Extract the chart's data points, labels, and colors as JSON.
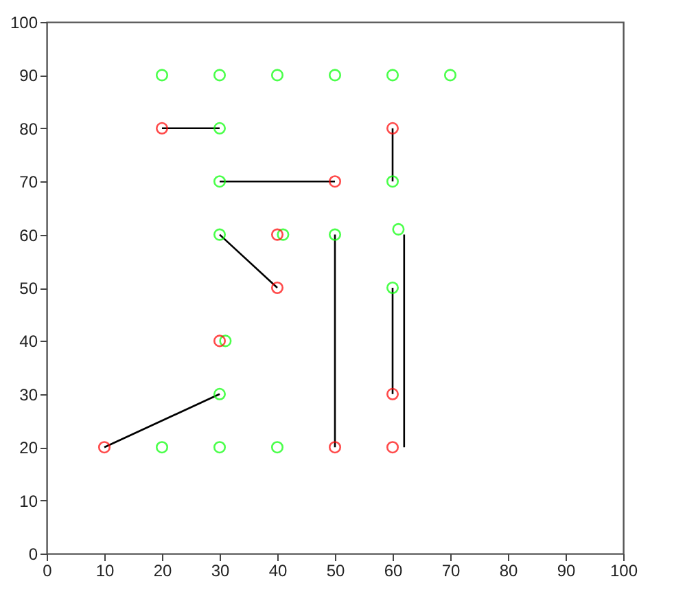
{
  "chart_data": {
    "type": "scatter",
    "marker": "circle",
    "grid": false,
    "xlim": [
      0,
      100
    ],
    "ylim": [
      0,
      100
    ],
    "xticks": [
      0,
      10,
      20,
      30,
      40,
      50,
      60,
      70,
      80,
      90,
      100
    ],
    "yticks": [
      0,
      10,
      20,
      30,
      40,
      50,
      60,
      70,
      80,
      90,
      100
    ],
    "series": [
      {
        "type": "line",
        "color": "#000000",
        "marker": "none",
        "x": [
          20,
          30
        ],
        "values": [
          80,
          80
        ]
      },
      {
        "type": "line",
        "color": "#000000",
        "marker": "none",
        "x": [
          30,
          50
        ],
        "values": [
          70,
          70
        ]
      },
      {
        "type": "line",
        "color": "#000000",
        "marker": "none",
        "x": [
          60,
          60
        ],
        "values": [
          80,
          70
        ]
      },
      {
        "type": "line",
        "color": "#000000",
        "marker": "none",
        "x": [
          30,
          40
        ],
        "values": [
          60,
          50
        ]
      },
      {
        "type": "line",
        "color": "#000000",
        "marker": "none",
        "x": [
          50,
          50
        ],
        "values": [
          60,
          20
        ]
      },
      {
        "type": "line",
        "color": "#000000",
        "marker": "none",
        "x": [
          60,
          60
        ],
        "values": [
          50,
          30
        ]
      },
      {
        "type": "line",
        "color": "#000000",
        "marker": "none",
        "x": [
          62,
          62
        ],
        "values": [
          60,
          20
        ]
      },
      {
        "type": "line",
        "color": "#000000",
        "marker": "none",
        "x": [
          10,
          30
        ],
        "values": [
          20,
          30
        ]
      },
      {
        "color": "#00ff00",
        "x": [
          20,
          30,
          40,
          50,
          60,
          70,
          30,
          30,
          60,
          30,
          41,
          50,
          61,
          60,
          31,
          30,
          20,
          30,
          40
        ],
        "values": [
          90,
          90,
          90,
          90,
          90,
          90,
          80,
          70,
          70,
          60,
          60,
          60,
          61,
          50,
          40,
          30,
          20,
          20,
          20
        ]
      },
      {
        "color": "#ff0000",
        "x": [
          20,
          60,
          50,
          40,
          40,
          30,
          60,
          10,
          50,
          60
        ],
        "values": [
          80,
          80,
          70,
          60,
          50,
          40,
          30,
          20,
          20,
          20
        ]
      }
    ]
  }
}
